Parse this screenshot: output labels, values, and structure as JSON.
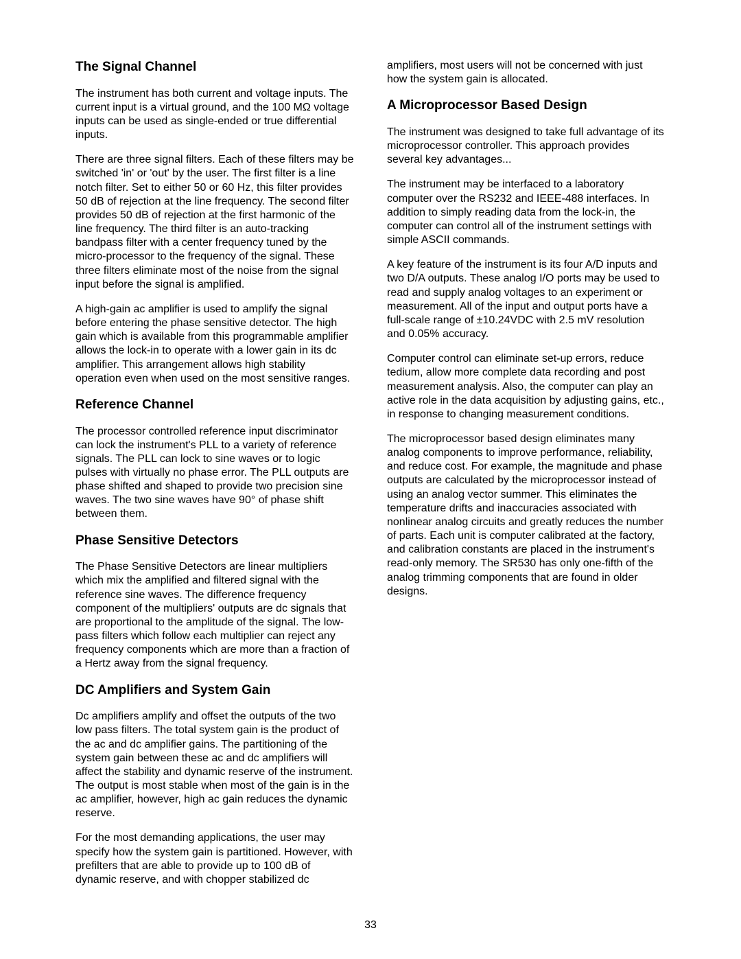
{
  "page_number": "33",
  "sections": [
    {
      "heading": "The Signal Channel",
      "paragraphs": [
        "The instrument has both current and voltage inputs.  The current input is a virtual ground, and the 100 MΩ voltage inputs can be used as single-ended or true differential inputs.",
        "There are three signal filters.  Each of these filters may be switched 'in' or 'out' by the user.  The first filter is a line notch filter.  Set to either 50 or 60 Hz, this filter provides 50 dB of rejection at the line frequency.  The second filter provides 50 dB of rejection at the first harmonic of the line frequency.  The third filter is an auto-tracking bandpass filter with a center frequency tuned by the micro-processor to the frequency of the signal. These three filters eliminate most of the noise from the signal input before the signal is amplified.",
        "A high-gain ac amplifier is used to amplify the signal before entering the phase sensitive detector.  The high gain which is available from this programmable amplifier allows the lock-in to operate with a lower gain in its dc amplifier.  This arrangement allows high stability operation even when used on the most sensitive ranges."
      ]
    },
    {
      "heading": "Reference Channel",
      "paragraphs": [
        "The processor controlled reference input discriminator can lock the instrument's PLL to a variety of reference signals.  The PLL can lock to sine waves or to logic pulses with virtually no phase error.  The PLL outputs are phase shifted and shaped to provide two precision sine waves.  The two sine waves have 90° of phase shift between them."
      ]
    },
    {
      "heading": "Phase Sensitive Detectors",
      "paragraphs": [
        "The Phase Sensitive Detectors are linear multipliers which mix the amplified and filtered signal with the reference sine waves.  The difference frequency component of the multipliers' outputs are dc signals that are proportional to the amplitude of the signal.  The low-pass filters which follow each multiplier can reject any frequency components which are more than a fraction of a Hertz away from the signal frequency."
      ]
    },
    {
      "heading": "DC Amplifiers and System Gain",
      "paragraphs": [
        "Dc amplifiers amplify and offset the outputs of the two low pass filters.  The total system gain is the product of the ac and dc amplifier gains.  The partitioning of the system gain between these ac and dc amplifiers will affect the stability and dynamic reserve of the instrument.  The output is most stable when most of the gain is in the ac amplifier, however, high ac gain reduces the dynamic reserve.",
        "For the most demanding applications, the user may specify how the system gain is partitioned.  However, with prefilters that are able to provide up to 100 dB of dynamic reserve, and with chopper stabilized dc amplifiers, most users will not be concerned with just how the system gain is allocated."
      ]
    },
    {
      "heading": "A Microprocessor Based Design",
      "paragraphs": [
        "The instrument was designed to take full advantage of its microprocessor controller.  This approach provides several key advantages...",
        "The instrument may be interfaced to a laboratory computer over the RS232 and IEEE-488 interfaces.  In addition to simply reading data from the lock-in, the computer can control all of the instrument settings with simple ASCII commands.",
        "A key feature of the instrument is its four A/D inputs and two D/A outputs.  These analog I/O ports may be used to read and supply analog voltages to an experiment or measurement.  All of the input and output ports have a full-scale range of ±10.24VDC with 2.5 mV resolution and 0.05% accuracy.",
        "Computer control can eliminate set-up errors, reduce tedium, allow more complete data recording and post measurement analysis.  Also, the computer can play an active role in the data acquisition by adjusting gains, etc., in response to changing measurement conditions.",
        "The microprocessor based design eliminates many analog components to improve performance, reliability, and reduce cost.  For example, the magnitude and phase outputs are calculated by the microprocessor instead of using an analog vector summer.  This eliminates the temperature drifts and inaccuracies associated with nonlinear analog circuits and greatly reduces the number of parts.  Each unit is computer calibrated at the factory, and calibration constants are placed in the instrument's read-only memory.  The SR530 has only one-fifth of the analog trimming components that are found in older designs."
      ]
    }
  ]
}
